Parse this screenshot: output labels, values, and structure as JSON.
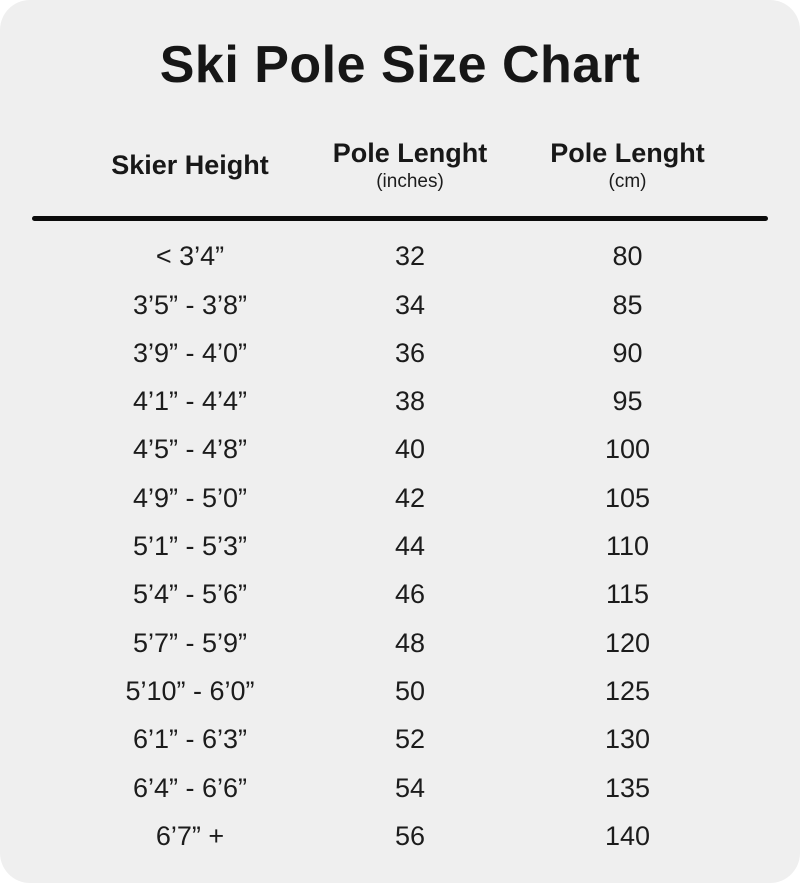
{
  "page": {
    "title": "Ski Pole Size Chart"
  },
  "colors": {
    "page_bg": "#ffffff",
    "card_bg": "#efefef",
    "text": "#1c1c1c",
    "divider": "#0b0b0b"
  },
  "chart_data": {
    "type": "table",
    "title": "Ski Pole Size Chart",
    "columns": [
      {
        "label": "Skier Height",
        "sublabel": ""
      },
      {
        "label": "Pole Lenght",
        "sublabel": "(inches)"
      },
      {
        "label": "Pole Lenght",
        "sublabel": "(cm)"
      }
    ],
    "rows": [
      {
        "skier_height": "< 3’4”",
        "pole_length_inches": "32",
        "pole_length_cm": "80"
      },
      {
        "skier_height": "3’5” - 3’8”",
        "pole_length_inches": "34",
        "pole_length_cm": "85"
      },
      {
        "skier_height": "3’9” - 4’0”",
        "pole_length_inches": "36",
        "pole_length_cm": "90"
      },
      {
        "skier_height": "4’1” - 4’4”",
        "pole_length_inches": "38",
        "pole_length_cm": "95"
      },
      {
        "skier_height": "4’5” - 4’8”",
        "pole_length_inches": "40",
        "pole_length_cm": "100"
      },
      {
        "skier_height": "4’9” - 5’0”",
        "pole_length_inches": "42",
        "pole_length_cm": "105"
      },
      {
        "skier_height": "5’1” - 5’3”",
        "pole_length_inches": "44",
        "pole_length_cm": "110"
      },
      {
        "skier_height": "5’4” - 5’6”",
        "pole_length_inches": "46",
        "pole_length_cm": "115"
      },
      {
        "skier_height": "5’7” - 5’9”",
        "pole_length_inches": "48",
        "pole_length_cm": "120"
      },
      {
        "skier_height": "5’10” - 6’0”",
        "pole_length_inches": "50",
        "pole_length_cm": "125"
      },
      {
        "skier_height": "6’1” - 6’3”",
        "pole_length_inches": "52",
        "pole_length_cm": "130"
      },
      {
        "skier_height": "6’4” - 6’6”",
        "pole_length_inches": "54",
        "pole_length_cm": "135"
      },
      {
        "skier_height": "6’7” +",
        "pole_length_inches": "56",
        "pole_length_cm": "140"
      }
    ]
  }
}
